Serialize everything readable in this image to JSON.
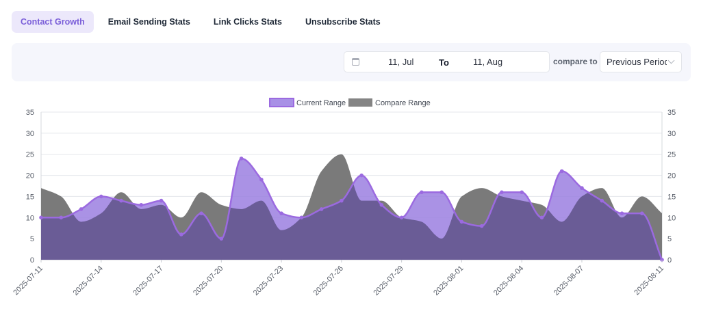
{
  "tabs": [
    {
      "label": "Contact Growth",
      "active": true
    },
    {
      "label": "Email Sending Stats",
      "active": false
    },
    {
      "label": "Link Clicks Stats",
      "active": false
    },
    {
      "label": "Unsubscribe Stats",
      "active": false
    }
  ],
  "filter": {
    "start_date": "11, Jul",
    "to_label": "To",
    "end_date": "11, Aug",
    "compare_label": "compare to",
    "compare_value": "Previous Period"
  },
  "colors": {
    "current_stroke": "#9b6ae0",
    "current_fill": "#9b7fe0",
    "compare_fill": "#7a7a7a",
    "overlap_fill": "#6a5c96"
  },
  "chart_data": {
    "type": "area",
    "legend": [
      "Current Range",
      "Compare Range"
    ],
    "legend_position": "top-center",
    "ylim": [
      0,
      35
    ],
    "yticks": [
      0,
      5,
      10,
      15,
      20,
      25,
      30,
      35
    ],
    "grid": true,
    "x_tick_labels": [
      "2025-07-11",
      "2025-07-14",
      "2025-07-17",
      "2025-07-20",
      "2025-07-23",
      "2025-07-26",
      "2025-07-29",
      "2025-08-01",
      "2025-08-04",
      "2025-08-07",
      "2025-08-11"
    ],
    "x": [
      "2025-07-11",
      "2025-07-12",
      "2025-07-13",
      "2025-07-14",
      "2025-07-15",
      "2025-07-16",
      "2025-07-17",
      "2025-07-18",
      "2025-07-19",
      "2025-07-20",
      "2025-07-21",
      "2025-07-22",
      "2025-07-23",
      "2025-07-24",
      "2025-07-25",
      "2025-07-26",
      "2025-07-27",
      "2025-07-28",
      "2025-07-29",
      "2025-07-30",
      "2025-07-31",
      "2025-08-01",
      "2025-08-02",
      "2025-08-03",
      "2025-08-04",
      "2025-08-05",
      "2025-08-06",
      "2025-08-07",
      "2025-08-08",
      "2025-08-09",
      "2025-08-10",
      "2025-08-11"
    ],
    "series": [
      {
        "name": "Current Range",
        "values": [
          10,
          10,
          12,
          15,
          14,
          13,
          14,
          6,
          11,
          5,
          24,
          19,
          11,
          10,
          12,
          14,
          20,
          13,
          10,
          16,
          16,
          9,
          8,
          16,
          16,
          10,
          21,
          17,
          14,
          11,
          11,
          0
        ]
      },
      {
        "name": "Compare Range",
        "values": [
          17,
          15,
          9,
          11,
          16,
          12,
          13,
          10,
          16,
          13,
          12,
          14,
          7,
          10,
          21,
          25,
          14,
          14,
          10,
          9,
          5,
          15,
          17,
          15,
          14,
          13,
          9,
          15,
          17,
          10,
          15,
          11
        ]
      }
    ]
  }
}
